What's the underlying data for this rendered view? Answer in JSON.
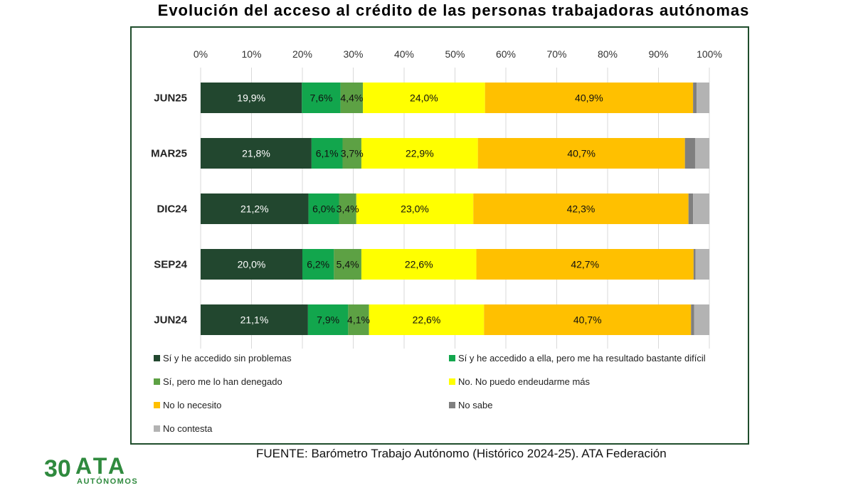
{
  "title": "Evolución del acceso al crédito de las personas trabajadoras autónomas",
  "source": "FUENTE: Barómetro Trabajo Autónomo (Histórico 2024-25). ATA Federación",
  "logo": {
    "number": "30",
    "brand": "ATA",
    "tagline": "AUTÓNOMOS",
    "color": "#2f8a3e"
  },
  "chart_data": {
    "type": "bar",
    "orientation": "horizontal",
    "stacked": true,
    "xlim": [
      0,
      100
    ],
    "x_ticks": [
      "0%",
      "10%",
      "20%",
      "30%",
      "40%",
      "50%",
      "60%",
      "70%",
      "80%",
      "90%",
      "100%"
    ],
    "grid": true,
    "legend_position": "bottom",
    "categories": [
      "JUN25",
      "MAR25",
      "DIC24",
      "SEP24",
      "JUN24"
    ],
    "series": [
      {
        "name": "Sí y he accedido sin problemas",
        "color": "#22472f",
        "label_color": "#ffffff",
        "values": [
          19.9,
          21.8,
          21.2,
          20.0,
          21.1
        ],
        "labels": [
          "19,9%",
          "21,8%",
          "21,2%",
          "20,0%",
          "21,1%"
        ]
      },
      {
        "name": "Sí y he accedido a ella, pero me ha resultado bastante difícil",
        "color": "#12a64d",
        "label_color": "#111111",
        "values": [
          7.6,
          6.1,
          6.0,
          6.2,
          7.9
        ],
        "labels": [
          "7,6%",
          "6,1%",
          "6,0%",
          "6,2%",
          "7,9%"
        ]
      },
      {
        "name": "Sí, pero me lo han denegado",
        "color": "#5da144",
        "label_color": "#111111",
        "values": [
          4.4,
          3.7,
          3.4,
          5.4,
          4.1
        ],
        "labels": [
          "4,4%",
          "3,7%",
          "3,4%",
          "5,4%",
          "4,1%"
        ]
      },
      {
        "name": "No. No puedo endeudarme más",
        "color": "#ffff00",
        "label_color": "#111111",
        "values": [
          24.0,
          22.9,
          23.0,
          22.6,
          22.6
        ],
        "labels": [
          "24,0%",
          "22,9%",
          "23,0%",
          "22,6%",
          "22,6%"
        ]
      },
      {
        "name": "No lo necesito",
        "color": "#ffc000",
        "label_color": "#111111",
        "values": [
          40.9,
          40.7,
          42.3,
          42.7,
          40.7
        ],
        "labels": [
          "40,9%",
          "40,7%",
          "42,3%",
          "42,7%",
          "40,7%"
        ]
      },
      {
        "name": "No sabe",
        "color": "#7f7f7f",
        "label_color": "#111111",
        "values": [
          0.7,
          2.0,
          0.9,
          0.4,
          0.6
        ],
        "labels": [
          "",
          "",
          "",
          "",
          ""
        ]
      },
      {
        "name": "No contesta",
        "color": "#b3b3b3",
        "label_color": "#111111",
        "values": [
          2.5,
          2.8,
          3.2,
          2.7,
          3.0
        ],
        "labels": [
          "",
          "",
          "",
          "",
          ""
        ]
      }
    ]
  }
}
